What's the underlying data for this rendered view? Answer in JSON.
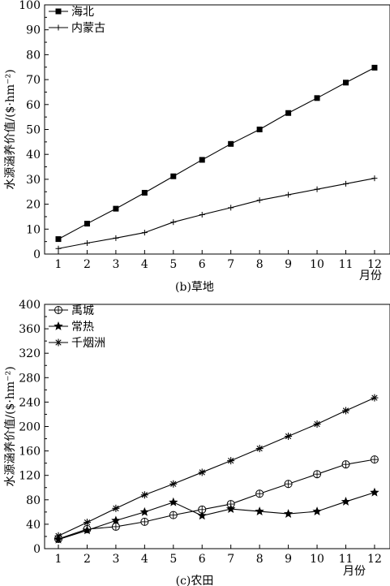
{
  "chart_data": [
    {
      "type": "line",
      "caption": "(b)草地",
      "ylabel": "水源涵养价值/($·hm⁻²)",
      "xlabel": "月份",
      "x": [
        1,
        2,
        3,
        4,
        5,
        6,
        7,
        8,
        9,
        10,
        11,
        12
      ],
      "xticks": [
        "1",
        "2",
        "3",
        "4",
        "5",
        "6",
        "7",
        "8",
        "9",
        "10",
        "11",
        "12"
      ],
      "ylim": [
        0,
        100
      ],
      "yticks": [
        "0",
        "10",
        "20",
        "30",
        "40",
        "50",
        "60",
        "70",
        "80",
        "90",
        "100"
      ],
      "grid": false,
      "legend": "top-left",
      "series": [
        {
          "name": "海北",
          "marker": "square",
          "values": [
            6,
            12.2,
            18.2,
            24.6,
            31.2,
            37.8,
            44.2,
            50,
            56.6,
            62.6,
            68.8,
            74.8
          ]
        },
        {
          "name": "内蒙古",
          "marker": "plus",
          "values": [
            2.2,
            4.4,
            6.4,
            8.6,
            12.8,
            15.8,
            18.6,
            21.6,
            23.8,
            26,
            28.2,
            30.4
          ]
        }
      ]
    },
    {
      "type": "line",
      "caption": "(c)农田",
      "ylabel": "水源涵养价值/($·hm⁻²)",
      "xlabel": "月份",
      "x": [
        1,
        2,
        3,
        4,
        5,
        6,
        7,
        8,
        9,
        10,
        11,
        12
      ],
      "xticks": [
        "1",
        "2",
        "3",
        "4",
        "5",
        "6",
        "7",
        "8",
        "9",
        "10",
        "11",
        "12"
      ],
      "ylim": [
        0,
        400
      ],
      "yticks": [
        "0",
        "40",
        "80",
        "120",
        "160",
        "200",
        "240",
        "280",
        "320",
        "360",
        "400"
      ],
      "grid": false,
      "legend": "top-left",
      "series": [
        {
          "name": "禹城",
          "marker": "circle-plus",
          "values": [
            16,
            32,
            36,
            44,
            55,
            64,
            73,
            90,
            106,
            122,
            138,
            146
          ]
        },
        {
          "name": "常热",
          "marker": "star",
          "values": [
            15,
            30,
            46,
            60,
            76,
            54,
            65,
            61,
            57,
            61,
            77,
            92
          ]
        },
        {
          "name": "千烟洲",
          "marker": "asterisk",
          "values": [
            21,
            43,
            66,
            88,
            106,
            125,
            144,
            164,
            184,
            204,
            226,
            247
          ]
        }
      ]
    }
  ]
}
